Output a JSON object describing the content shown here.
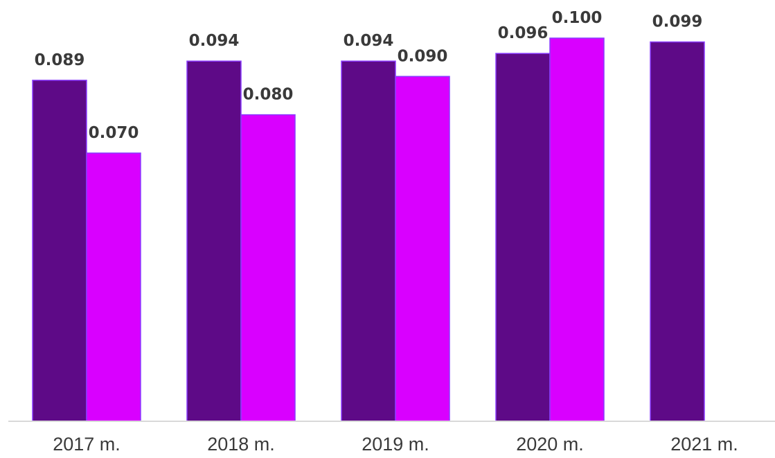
{
  "chart_data": {
    "type": "bar",
    "categories": [
      "2017 m.",
      "2018 m.",
      "2019 m.",
      "2020 m.",
      "2021 m."
    ],
    "series": [
      {
        "color": "#5e0a87",
        "values": [
          0.089,
          0.094,
          0.094,
          0.096,
          0.099
        ]
      },
      {
        "color": "#d900ff",
        "values": [
          0.07,
          0.08,
          0.09,
          0.1,
          null
        ]
      }
    ],
    "value_labels": [
      [
        "0.089",
        "0.094",
        "0.094",
        "0.096",
        "0.099"
      ],
      [
        "0.070",
        "0.080",
        "0.090",
        "0.100",
        ""
      ]
    ],
    "title": "",
    "xlabel": "",
    "ylabel": "",
    "ylim": [
      0,
      0.1
    ],
    "grid": false,
    "legend": "none"
  }
}
